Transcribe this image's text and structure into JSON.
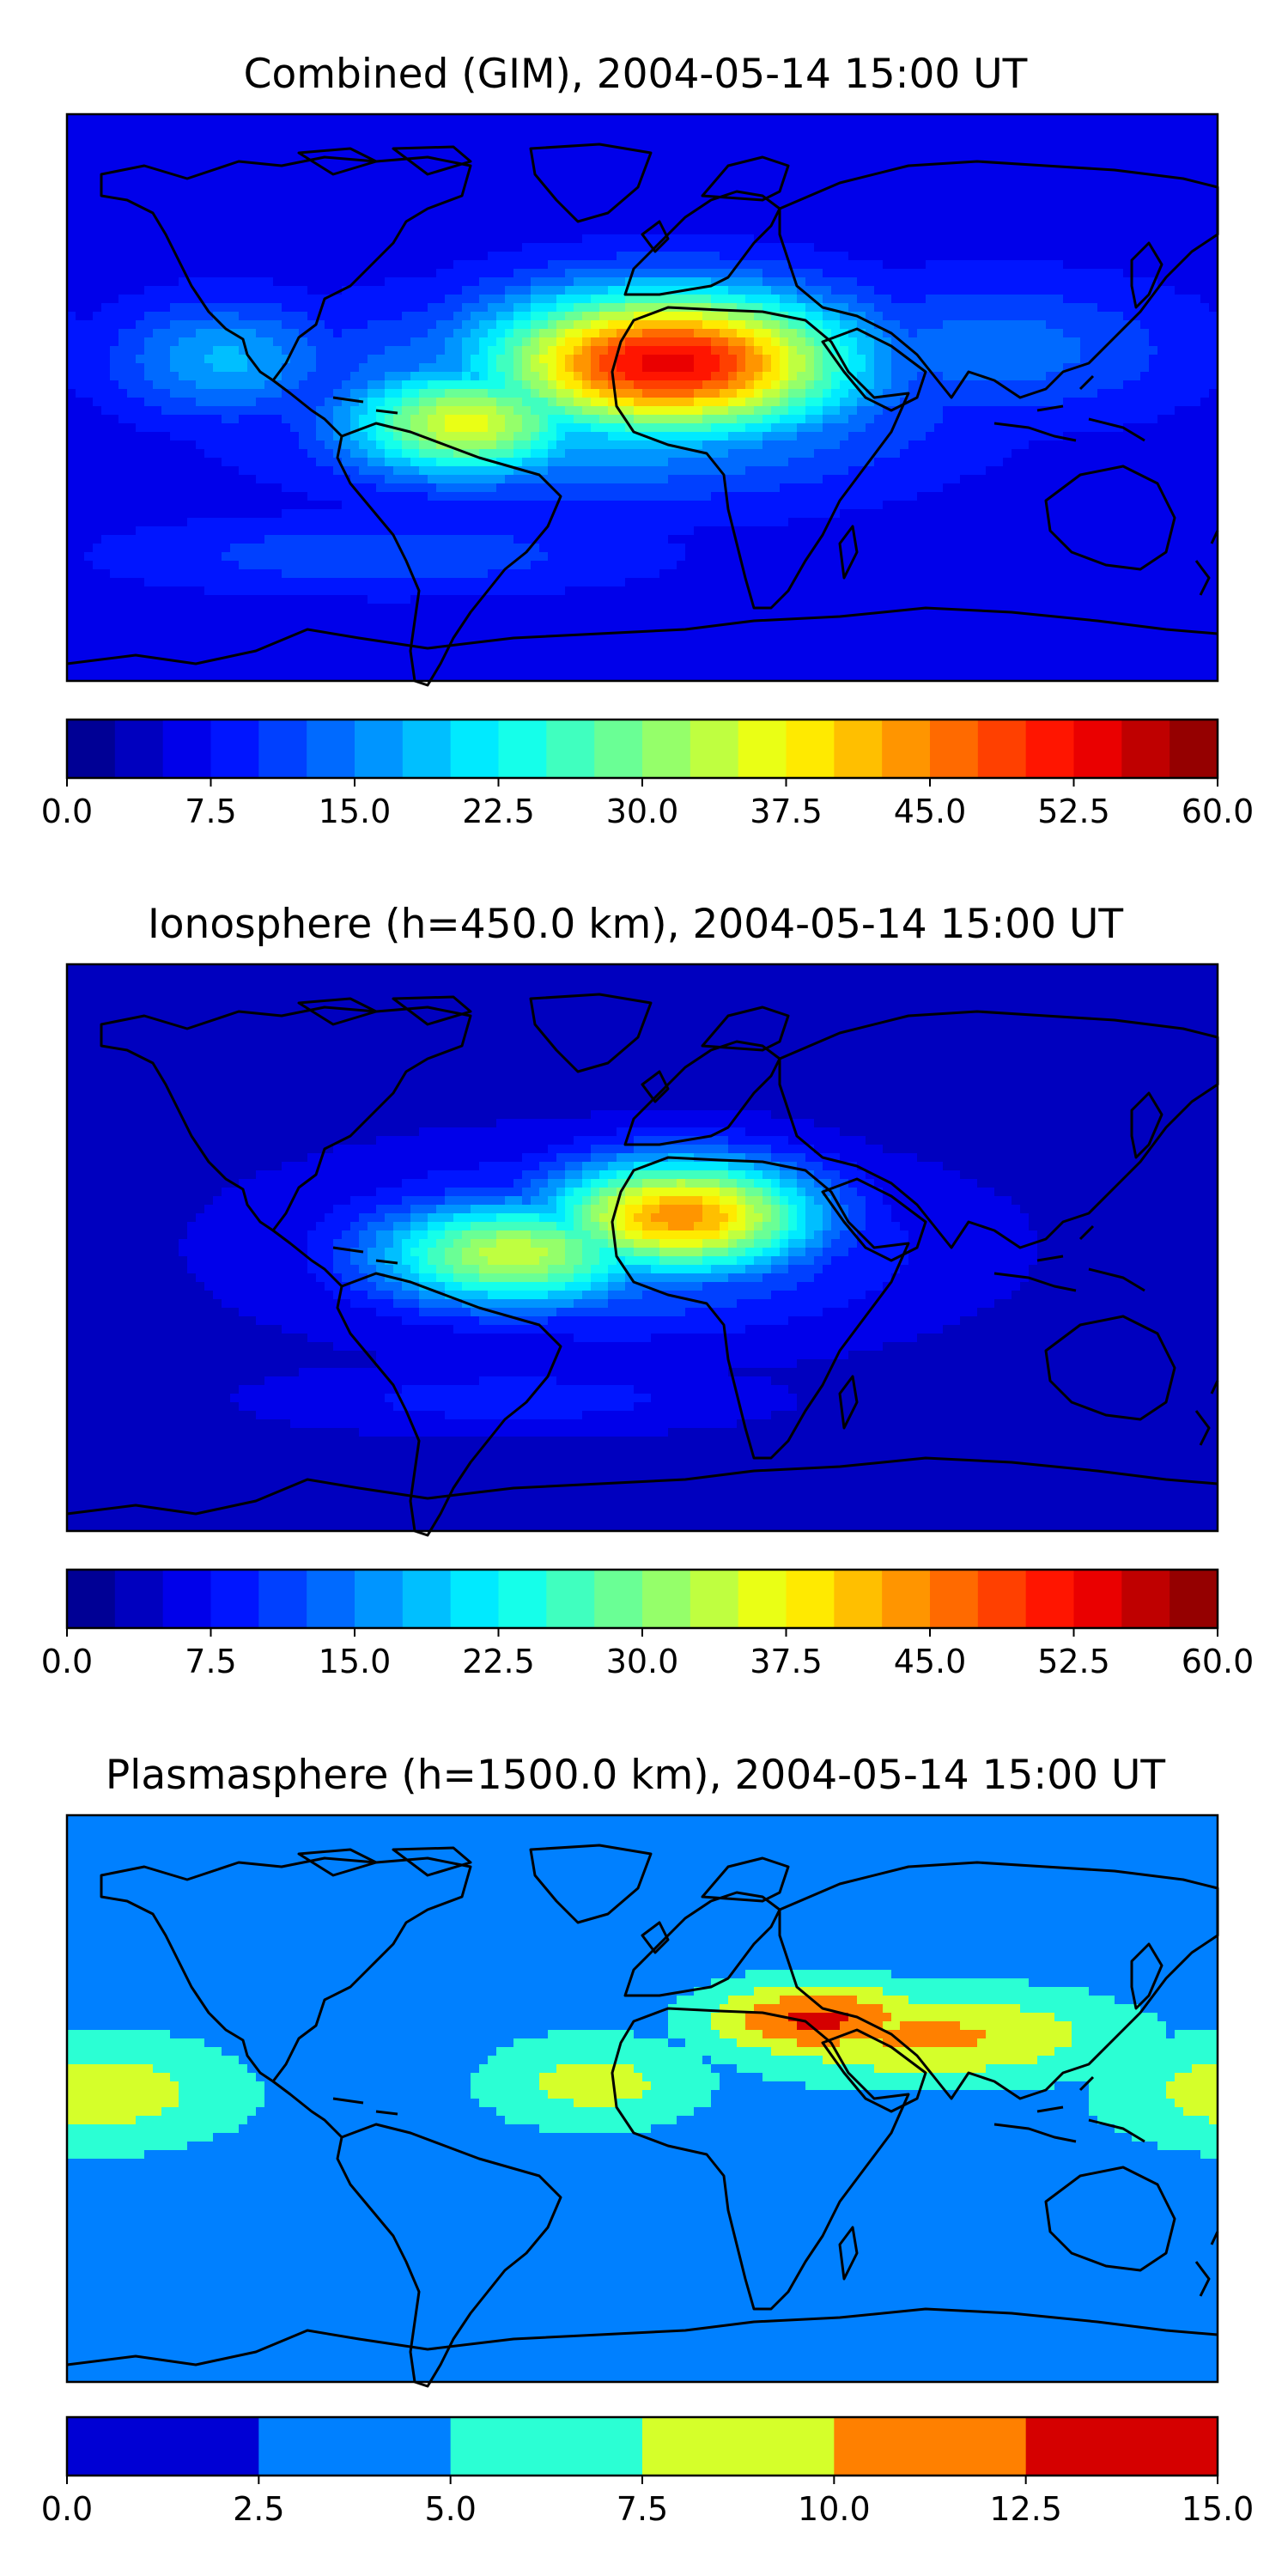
{
  "panels": [
    {
      "id": "combined",
      "title": "Combined (GIM), 2004-05-14 15:00 UT",
      "colorbar": {
        "vmin": 0.0,
        "vmax": 60.0,
        "levels": 24,
        "ticks": [
          "0.0",
          "7.5",
          "15.0",
          "22.5",
          "30.0",
          "37.5",
          "45.0",
          "52.5",
          "60.0"
        ]
      },
      "peaks": [
        {
          "name": "west-africa",
          "lon": 8,
          "lat": 11,
          "value": 54,
          "sx": 55,
          "sy": 22
        },
        {
          "name": "south-america",
          "lon": -55,
          "lat": -8,
          "value": 36,
          "sx": 38,
          "sy": 17
        },
        {
          "name": "tropical-belt",
          "lon": -10,
          "lat": 0,
          "value": 22,
          "sx": 90,
          "sy": 28
        },
        {
          "name": "pacific-north",
          "lon": -130,
          "lat": 12,
          "value": 18,
          "sx": 35,
          "sy": 18
        },
        {
          "name": "asia",
          "lon": 110,
          "lat": 15,
          "value": 14,
          "sx": 60,
          "sy": 22
        },
        {
          "name": "southern-band",
          "lon": -80,
          "lat": -50,
          "value": 12,
          "sx": 80,
          "sy": 12
        }
      ],
      "background": 6
    },
    {
      "id": "ionosphere",
      "title": "Ionosphere  (h=450.0 km), 2004-05-14 15:00 UT",
      "colorbar": {
        "vmin": 0.0,
        "vmax": 60.0,
        "levels": 24,
        "ticks": [
          "0.0",
          "7.5",
          "15.0",
          "22.5",
          "30.0",
          "37.5",
          "45.0",
          "52.5",
          "60.0"
        ]
      },
      "peaks": [
        {
          "name": "west-africa",
          "lon": 12,
          "lat": 10,
          "value": 44,
          "sx": 42,
          "sy": 18
        },
        {
          "name": "south-america",
          "lon": -40,
          "lat": -2,
          "value": 34,
          "sx": 45,
          "sy": 17
        },
        {
          "name": "tropical-belt",
          "lon": -10,
          "lat": 0,
          "value": 16,
          "sx": 85,
          "sy": 26
        },
        {
          "name": "southern-band",
          "lon": -40,
          "lat": -48,
          "value": 9,
          "sx": 70,
          "sy": 10
        }
      ],
      "background": 4
    },
    {
      "id": "plasmasphere",
      "title": "Plasmasphere (h=1500.0 km), 2004-05-14 15:00 UT",
      "colorbar": {
        "vmin": 0.0,
        "vmax": 15.0,
        "levels": 6,
        "ticks": [
          "0.0",
          "2.5",
          "5.0",
          "7.5",
          "10.0",
          "12.5",
          "15.0"
        ]
      },
      "peaks": [
        {
          "name": "arabia",
          "lon": 55,
          "lat": 25,
          "value": 13.2,
          "sx": 35,
          "sy": 12
        },
        {
          "name": "asia-band",
          "lon": 90,
          "lat": 20,
          "value": 10.5,
          "sx": 60,
          "sy": 15
        },
        {
          "name": "pacific-west",
          "lon": -170,
          "lat": 2,
          "value": 9.0,
          "sx": 45,
          "sy": 18
        },
        {
          "name": "atlantic",
          "lon": -15,
          "lat": 5,
          "value": 8.5,
          "sx": 35,
          "sy": 15
        },
        {
          "name": "south-pacific",
          "lon": -160,
          "lat": -65,
          "value": 4.0,
          "sx": 35,
          "sy": 6
        },
        {
          "name": "south-indian",
          "lon": 30,
          "lat": -65,
          "value": 4.0,
          "sx": 45,
          "sy": 6
        }
      ],
      "background": 3.5
    }
  ]
}
